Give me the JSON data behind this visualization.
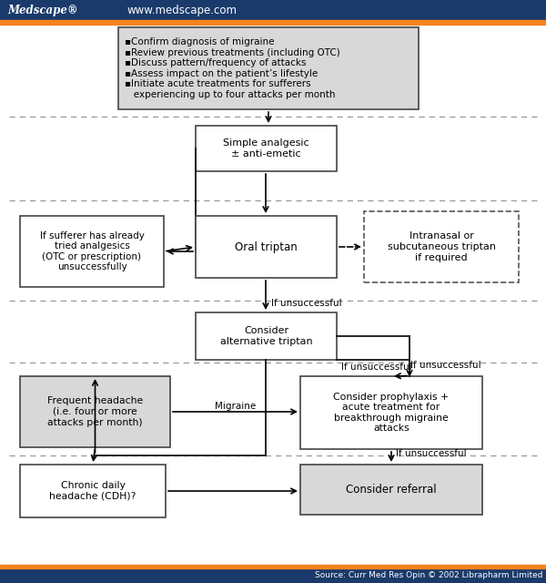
{
  "header_bg": "#1a3a6b",
  "header_orange": "#f5821f",
  "medscape_text": "Medscape®",
  "url_text": "www.medscape.com",
  "source_text": "Source: Curr Med Res Opin © 2002 Librapharm Limited",
  "box1_text": "▪Confirm diagnosis of migraine\n▪Review previous treatments (including OTC)\n▪Discuss pattern/frequency of attacks\n▪Assess impact on the patient’s lifestyle\n▪Initiate acute treatments for sufferers\n   experiencing up to four attacks per month",
  "box2_text": "Simple analgesic\n± anti-emetic",
  "box3_text": "If sufferer has already\ntried analgesics\n(OTC or prescription)\nunsuccessfully",
  "box4_text": "Oral triptan",
  "box5_text": "Intranasal or\nsubcutaneous triptan\nif required",
  "box6_text": "Consider\nalternative triptan",
  "box7_text": "Frequent headache\n(i.e. four or more\nattacks per month)",
  "box8_text": "Consider prophylaxis +\nacute treatment for\nbreakthrough migraine\nattacks",
  "box9_text": "Chronic daily\nheadache (CDH)?",
  "box10_text": "Consider referral",
  "label_if_unsuccessful1": "If unsuccessful",
  "label_if_unsuccessful2": "If unsuccessful",
  "label_if_unsuccessful3": "If unsuccessful",
  "label_migraine": "Migraine",
  "bg_color": "#ffffff",
  "box_fill_gray": "#d8d8d8",
  "box_fill_white": "#ffffff",
  "box_edge": "#444444",
  "dash_color": "#999999",
  "arrow_color": "#000000"
}
